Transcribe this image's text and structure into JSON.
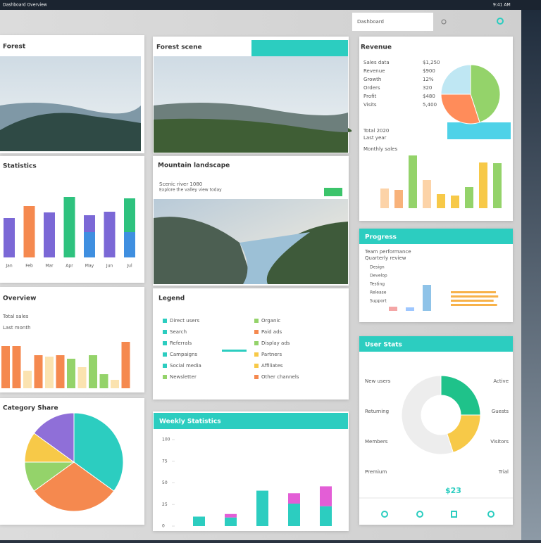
{
  "topbar": {
    "title": "Dashboard Overview",
    "status": "9:41 AM"
  },
  "search": {
    "placeholder": "Dashboard"
  },
  "forest": {
    "title": "Forest"
  },
  "statistics": {
    "title": "Statistics",
    "chart": {
      "type": "bar",
      "categories": [
        "Jan",
        "Feb",
        "Mar",
        "Apr",
        "May",
        "Jun",
        "Jul"
      ],
      "series": [
        {
          "colors": [
            "#7b68d6",
            "#f5894f",
            "#7b68d6",
            "#2ec27e",
            "#3f8fe0",
            "#7b68d6",
            "#3f8fe0"
          ],
          "values": [
            56,
            73,
            64,
            86,
            36,
            65,
            36
          ]
        },
        {
          "colors": [
            "#7b68d6",
            "#7b68d6",
            "#7b68d6",
            "#7b68d6",
            "#7b68d6",
            "#7b68d6",
            "#2ec27e"
          ],
          "values": [
            null,
            null,
            null,
            null,
            24,
            null,
            48
          ]
        }
      ]
    }
  },
  "overview": {
    "title": "Overview",
    "lines": [
      "Total sales",
      "Last month"
    ],
    "chart": {
      "type": "bar",
      "series": [
        {
          "colors": [
            "#f5894f",
            "#f5894f",
            "#fbe3b0",
            "#f5894f",
            "#fbe3b0",
            "#f5894f",
            "#94d36a",
            "#fbe3b0",
            "#94d36a",
            "#94d36a",
            "#fbe3b0",
            "#f5894f"
          ],
          "values": [
            60,
            60,
            25,
            47,
            45,
            47,
            42,
            30,
            47,
            20,
            12,
            66
          ]
        }
      ]
    }
  },
  "share": {
    "title": "Category Share",
    "chart": {
      "type": "pie",
      "colors": [
        "#2ccdc0",
        "#f5894f",
        "#94d36a",
        "#f7c948",
        "#8f6fd8"
      ],
      "values": [
        35,
        30,
        10,
        10,
        15
      ]
    }
  },
  "scene": {
    "title": "Forest scene"
  },
  "mountain": {
    "title": "Mountain landscape",
    "heading": "Scenic river 1080",
    "text": "Explore the valley view today"
  },
  "legend": {
    "title": "Legend",
    "items": [
      {
        "label": "Direct users",
        "color": "#2ccdc0"
      },
      {
        "label": "Search",
        "color": "#2ccdc0"
      },
      {
        "label": "Referrals",
        "color": "#2ccdc0"
      },
      {
        "label": "Campaigns",
        "color": "#2ccdc0"
      },
      {
        "label": "Social media",
        "color": "#2ccdc0"
      },
      {
        "label": "Newsletter",
        "color": "#94d36a"
      },
      {
        "label": "Organic",
        "color": "#94d36a"
      },
      {
        "label": "Paid ads",
        "color": "#f5894f"
      },
      {
        "label": "Display ads",
        "color": "#94d36a"
      },
      {
        "label": "Partners",
        "color": "#f7c948"
      },
      {
        "label": "Affiliates",
        "color": "#f7c948"
      },
      {
        "label": "Other channels",
        "color": "#f5894f"
      }
    ]
  },
  "weekly": {
    "title": "Weekly Statistics",
    "chart": {
      "type": "bar",
      "ylim": [
        0,
        100
      ],
      "yticks": [
        0,
        25,
        50,
        75,
        100
      ],
      "series": [
        {
          "color": "#2ccdc0",
          "values": [
            11,
            10,
            41,
            26,
            23
          ]
        },
        {
          "color": "#e35ed6",
          "values": [
            null,
            4,
            null,
            12,
            23
          ]
        }
      ]
    }
  },
  "revenue": {
    "title": "Revenue",
    "rows": [
      [
        "Sales data",
        "$1,250"
      ],
      [
        "Revenue",
        "$900"
      ],
      [
        "Growth",
        "12%"
      ],
      [
        "Orders",
        "320"
      ],
      [
        "Profit",
        "$480"
      ],
      [
        "Visits",
        "5,400"
      ]
    ],
    "notes": [
      "Total 2020",
      "Last year"
    ],
    "subtitle": "Monthly sales",
    "pie": {
      "type": "pie",
      "colors": [
        "#94d36a",
        "#ff8c5a",
        "#bfe7f3"
      ],
      "values": [
        45,
        30,
        25
      ]
    },
    "chart": {
      "type": "bar",
      "series": [
        {
          "colors": [
            "#fcd3a8",
            "#f8b27a",
            "#94d36a",
            "#fcd3a8",
            "#f7c948",
            "#f7c948",
            "#94d36a",
            "#f7c948",
            "#94d36a"
          ],
          "values": [
            28,
            26,
            75,
            40,
            20,
            18,
            30,
            65,
            64
          ]
        }
      ]
    }
  },
  "progress": {
    "title": "Progress",
    "lines": [
      "Team performance",
      "Quarterly review"
    ],
    "labels": [
      "Design",
      "Develop",
      "Testing",
      "Release",
      "Support"
    ],
    "chart": {
      "type": "bar",
      "series": [
        {
          "colors": [
            "#f4a6a6",
            "#9ec7ff",
            "#8fc3e8"
          ],
          "values": [
            6,
            5,
            37
          ]
        }
      ]
    },
    "bars": {
      "xlim": [
        0,
        100
      ],
      "color": "#f7b24a",
      "values": [
        78,
        82,
        74,
        80
      ]
    }
  },
  "users": {
    "title": "User Stats",
    "labels": [
      "New users",
      "Active",
      "Returning",
      "Guests",
      "Members",
      "Visitors",
      "Premium",
      "Trial"
    ],
    "total": "$23",
    "chart": {
      "type": "pie",
      "colors": [
        "#1fc28a",
        "#f7c948",
        "#ededed"
      ],
      "values": [
        25,
        20,
        55
      ]
    }
  }
}
